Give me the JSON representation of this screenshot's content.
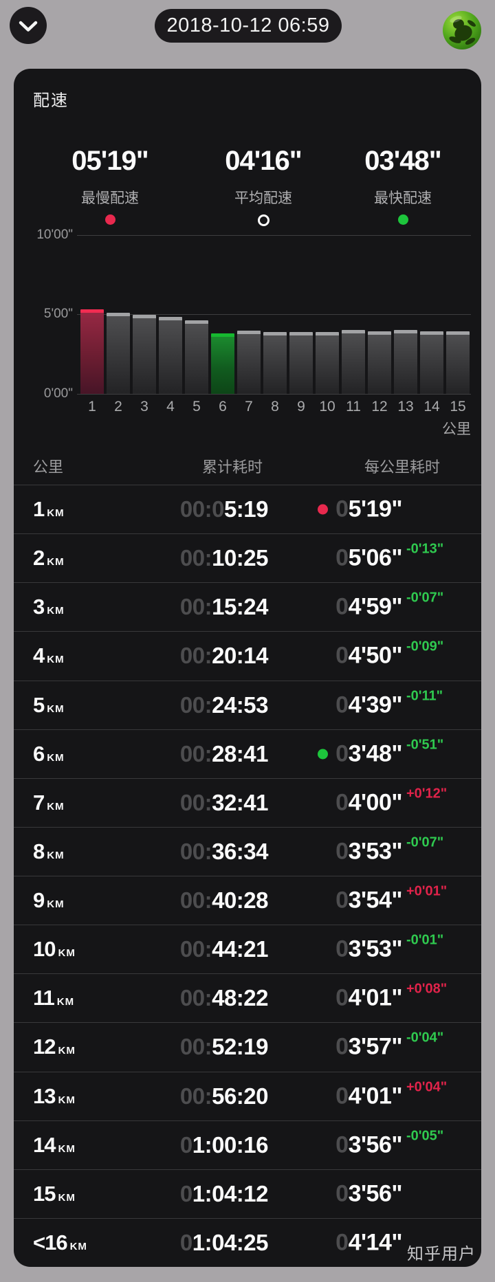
{
  "header": {
    "date_time": "2018-10-12 06:59",
    "collapse_icon": "chevron-down",
    "app_icon": "green-globe-frog"
  },
  "pace_card": {
    "title": "配速",
    "stats": [
      {
        "value": "05'19\"",
        "label": "最慢配速",
        "marker": "red-dot"
      },
      {
        "value": "04'16\"",
        "label": "平均配速",
        "marker": "white-ring"
      },
      {
        "value": "03'48\"",
        "label": "最快配速",
        "marker": "green-dot"
      }
    ]
  },
  "chart_data": {
    "type": "bar",
    "title": "每公里配速柱状图",
    "x": [
      1,
      2,
      3,
      4,
      5,
      6,
      7,
      8,
      9,
      10,
      11,
      12,
      13,
      14,
      15
    ],
    "xlabel": "公里",
    "values_seconds": [
      319,
      306,
      299,
      290,
      279,
      228,
      240,
      233,
      234,
      233,
      241,
      237,
      241,
      236,
      236
    ],
    "values_pace": [
      "5'19\"",
      "5'06\"",
      "4'59\"",
      "4'50\"",
      "4'39\"",
      "3'48\"",
      "4'00\"",
      "3'53\"",
      "3'54\"",
      "3'53\"",
      "4'01\"",
      "3'57\"",
      "4'01\"",
      "3'56\"",
      "3'56\""
    ],
    "ylim_seconds": [
      0,
      600
    ],
    "ytick_labels_top_to_bottom": [
      "10'00\"",
      "5'00\"",
      "0'00\""
    ],
    "grid": true,
    "highlight": {
      "slowest_km": 1,
      "fastest_km": 6
    }
  },
  "table": {
    "headers": [
      "公里",
      "累计耗时",
      "每公里耗时"
    ],
    "rows": [
      {
        "km": "1",
        "unit": "KM",
        "cum_dim": "00:0",
        "cum": "5:19",
        "pace_dim": "0",
        "pace": "5'19\"",
        "dot": "red",
        "delta": "",
        "delta_dir": ""
      },
      {
        "km": "2",
        "unit": "KM",
        "cum_dim": "00:",
        "cum": "10:25",
        "pace_dim": "0",
        "pace": "5'06\"",
        "dot": "",
        "delta": "-0'13\"",
        "delta_dir": "faster"
      },
      {
        "km": "3",
        "unit": "KM",
        "cum_dim": "00:",
        "cum": "15:24",
        "pace_dim": "0",
        "pace": "4'59\"",
        "dot": "",
        "delta": "-0'07\"",
        "delta_dir": "faster"
      },
      {
        "km": "4",
        "unit": "KM",
        "cum_dim": "00:",
        "cum": "20:14",
        "pace_dim": "0",
        "pace": "4'50\"",
        "dot": "",
        "delta": "-0'09\"",
        "delta_dir": "faster"
      },
      {
        "km": "5",
        "unit": "KM",
        "cum_dim": "00:",
        "cum": "24:53",
        "pace_dim": "0",
        "pace": "4'39\"",
        "dot": "",
        "delta": "-0'11\"",
        "delta_dir": "faster"
      },
      {
        "km": "6",
        "unit": "KM",
        "cum_dim": "00:",
        "cum": "28:41",
        "pace_dim": "0",
        "pace": "3'48\"",
        "dot": "green",
        "delta": "-0'51\"",
        "delta_dir": "faster"
      },
      {
        "km": "7",
        "unit": "KM",
        "cum_dim": "00:",
        "cum": "32:41",
        "pace_dim": "0",
        "pace": "4'00\"",
        "dot": "",
        "delta": "+0'12\"",
        "delta_dir": "slower"
      },
      {
        "km": "8",
        "unit": "KM",
        "cum_dim": "00:",
        "cum": "36:34",
        "pace_dim": "0",
        "pace": "3'53\"",
        "dot": "",
        "delta": "-0'07\"",
        "delta_dir": "faster"
      },
      {
        "km": "9",
        "unit": "KM",
        "cum_dim": "00:",
        "cum": "40:28",
        "pace_dim": "0",
        "pace": "3'54\"",
        "dot": "",
        "delta": "+0'01\"",
        "delta_dir": "slower"
      },
      {
        "km": "10",
        "unit": "KM",
        "cum_dim": "00:",
        "cum": "44:21",
        "pace_dim": "0",
        "pace": "3'53\"",
        "dot": "",
        "delta": "-0'01\"",
        "delta_dir": "faster"
      },
      {
        "km": "11",
        "unit": "KM",
        "cum_dim": "00:",
        "cum": "48:22",
        "pace_dim": "0",
        "pace": "4'01\"",
        "dot": "",
        "delta": "+0'08\"",
        "delta_dir": "slower"
      },
      {
        "km": "12",
        "unit": "KM",
        "cum_dim": "00:",
        "cum": "52:19",
        "pace_dim": "0",
        "pace": "3'57\"",
        "dot": "",
        "delta": "-0'04\"",
        "delta_dir": "faster"
      },
      {
        "km": "13",
        "unit": "KM",
        "cum_dim": "00:",
        "cum": "56:20",
        "pace_dim": "0",
        "pace": "4'01\"",
        "dot": "",
        "delta": "+0'04\"",
        "delta_dir": "slower"
      },
      {
        "km": "14",
        "unit": "KM",
        "cum_dim": "0",
        "cum": "1:00:16",
        "pace_dim": "0",
        "pace": "3'56\"",
        "dot": "",
        "delta": "-0'05\"",
        "delta_dir": "faster"
      },
      {
        "km": "15",
        "unit": "KM",
        "cum_dim": "0",
        "cum": "1:04:12",
        "pace_dim": "0",
        "pace": "3'56\"",
        "dot": "",
        "delta": "",
        "delta_dir": ""
      },
      {
        "km": "<16",
        "unit": "KM",
        "cum_dim": "0",
        "cum": "1:04:25",
        "pace_dim": "0",
        "pace": "4'14\"",
        "dot": "",
        "delta": "",
        "delta_dir": ""
      }
    ]
  },
  "watermark": "知乎用户",
  "colors": {
    "page_background": "#a8a5a8",
    "card_background": "#151517",
    "header_chip_background": "#1c1a1d",
    "primary_text": "#fafafa",
    "muted_text": "#a6a6a8",
    "dim_digits": "#4d4d4f",
    "divider": "#39393b",
    "slowest_accent": "#e8294e",
    "fastest_accent": "#1dc53c",
    "delta_faster_green": "#2fc94f",
    "delta_slower_red": "#e0234a",
    "bar_default_cap": "#a2a3a5",
    "bar_default_body": "#3c3c3e"
  }
}
